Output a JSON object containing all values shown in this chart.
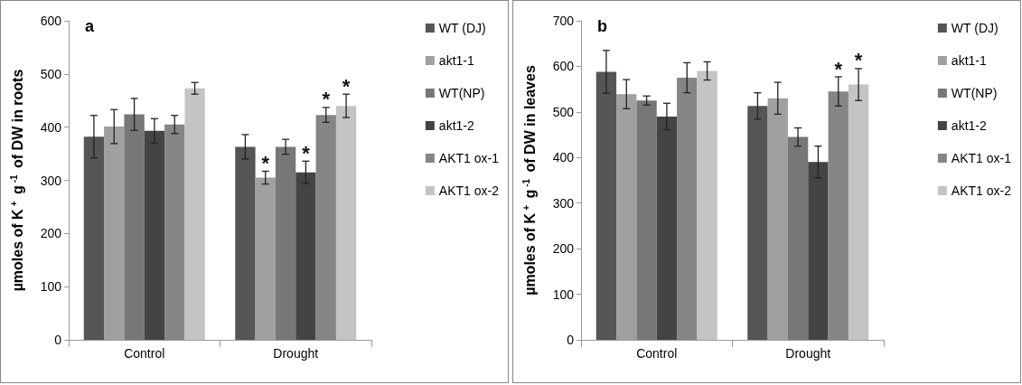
{
  "chart_data": [
    {
      "type": "bar",
      "title": "a",
      "ylabel": "µmoles of K$^{+}$ g$^{-1}$ of DW in roots",
      "categories": [
        "Control",
        "Drought"
      ],
      "ylim": [
        0,
        600
      ],
      "yticks": [
        0,
        100,
        200,
        300,
        400,
        500,
        600
      ],
      "legend": "right",
      "series": [
        {
          "name": "WT (DJ)",
          "color": "#555555",
          "values": [
            382,
            363
          ],
          "errors": [
            40,
            23
          ]
        },
        {
          "name": "akt1-1",
          "color": "#a0a0a0",
          "values": [
            401,
            305
          ],
          "errors": [
            32,
            12
          ],
          "value_labels": [
            null,
            "*"
          ]
        },
        {
          "name": "WT(NP)",
          "color": "#777777",
          "values": [
            424,
            363
          ],
          "errors": [
            30,
            14
          ]
        },
        {
          "name": "akt1-2",
          "color": "#444444",
          "values": [
            393,
            315
          ],
          "errors": [
            23,
            21
          ],
          "value_labels": [
            null,
            "*"
          ]
        },
        {
          "name": "AKT1 ox-1",
          "color": "#858585",
          "values": [
            405,
            423
          ],
          "errors": [
            17,
            14
          ],
          "value_labels": [
            null,
            "*"
          ]
        },
        {
          "name": "AKT1 ox-2",
          "color": "#c4c4c4",
          "values": [
            473,
            440
          ],
          "errors": [
            11,
            22
          ],
          "value_labels": [
            null,
            "*"
          ]
        }
      ]
    },
    {
      "type": "bar",
      "title": "b",
      "ylabel": "µmoles of K$^{+}$ g$^{-1}$ of DW in leaves",
      "categories": [
        "Control",
        "Drought"
      ],
      "ylim": [
        0,
        700
      ],
      "yticks": [
        0,
        100,
        200,
        300,
        400,
        500,
        600,
        700
      ],
      "legend": "right",
      "series": [
        {
          "name": "WT (DJ)",
          "color": "#555555",
          "values": [
            588,
            513
          ],
          "errors": [
            47,
            29
          ]
        },
        {
          "name": "akt1-1",
          "color": "#a0a0a0",
          "values": [
            539,
            530
          ],
          "errors": [
            32,
            35
          ]
        },
        {
          "name": "WT(NP)",
          "color": "#777777",
          "values": [
            525,
            445
          ],
          "errors": [
            10,
            20
          ]
        },
        {
          "name": "akt1-2",
          "color": "#444444",
          "values": [
            490,
            390
          ],
          "errors": [
            29,
            35
          ]
        },
        {
          "name": "AKT1 ox-1",
          "color": "#858585",
          "values": [
            575,
            545
          ],
          "errors": [
            33,
            32
          ],
          "value_labels": [
            null,
            "*"
          ]
        },
        {
          "name": "AKT1 ox-2",
          "color": "#c4c4c4",
          "values": [
            590,
            560
          ],
          "errors": [
            20,
            35
          ],
          "value_labels": [
            null,
            "*"
          ]
        }
      ]
    }
  ]
}
